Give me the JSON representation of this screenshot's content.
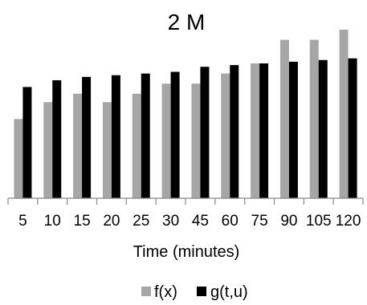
{
  "chart_data": {
    "type": "bar",
    "title": "2 M",
    "xlabel": "Time (minutes)",
    "ylabel": "",
    "categories": [
      "5",
      "10",
      "15",
      "20",
      "25",
      "30",
      "45",
      "60",
      "75",
      "90",
      "105",
      "120"
    ],
    "series": [
      {
        "name": "f(x)",
        "color": "#a6a6a6",
        "values": [
          0.47,
          0.57,
          0.62,
          0.57,
          0.62,
          0.68,
          0.68,
          0.74,
          0.8,
          0.94,
          0.94,
          1.0
        ]
      },
      {
        "name": "g(t,u)",
        "color": "#000000",
        "values": [
          0.66,
          0.7,
          0.72,
          0.73,
          0.74,
          0.75,
          0.78,
          0.79,
          0.8,
          0.81,
          0.82,
          0.83
        ]
      }
    ],
    "ylim": [
      0,
      1.0
    ],
    "grid": false,
    "legend_position": "bottom"
  }
}
